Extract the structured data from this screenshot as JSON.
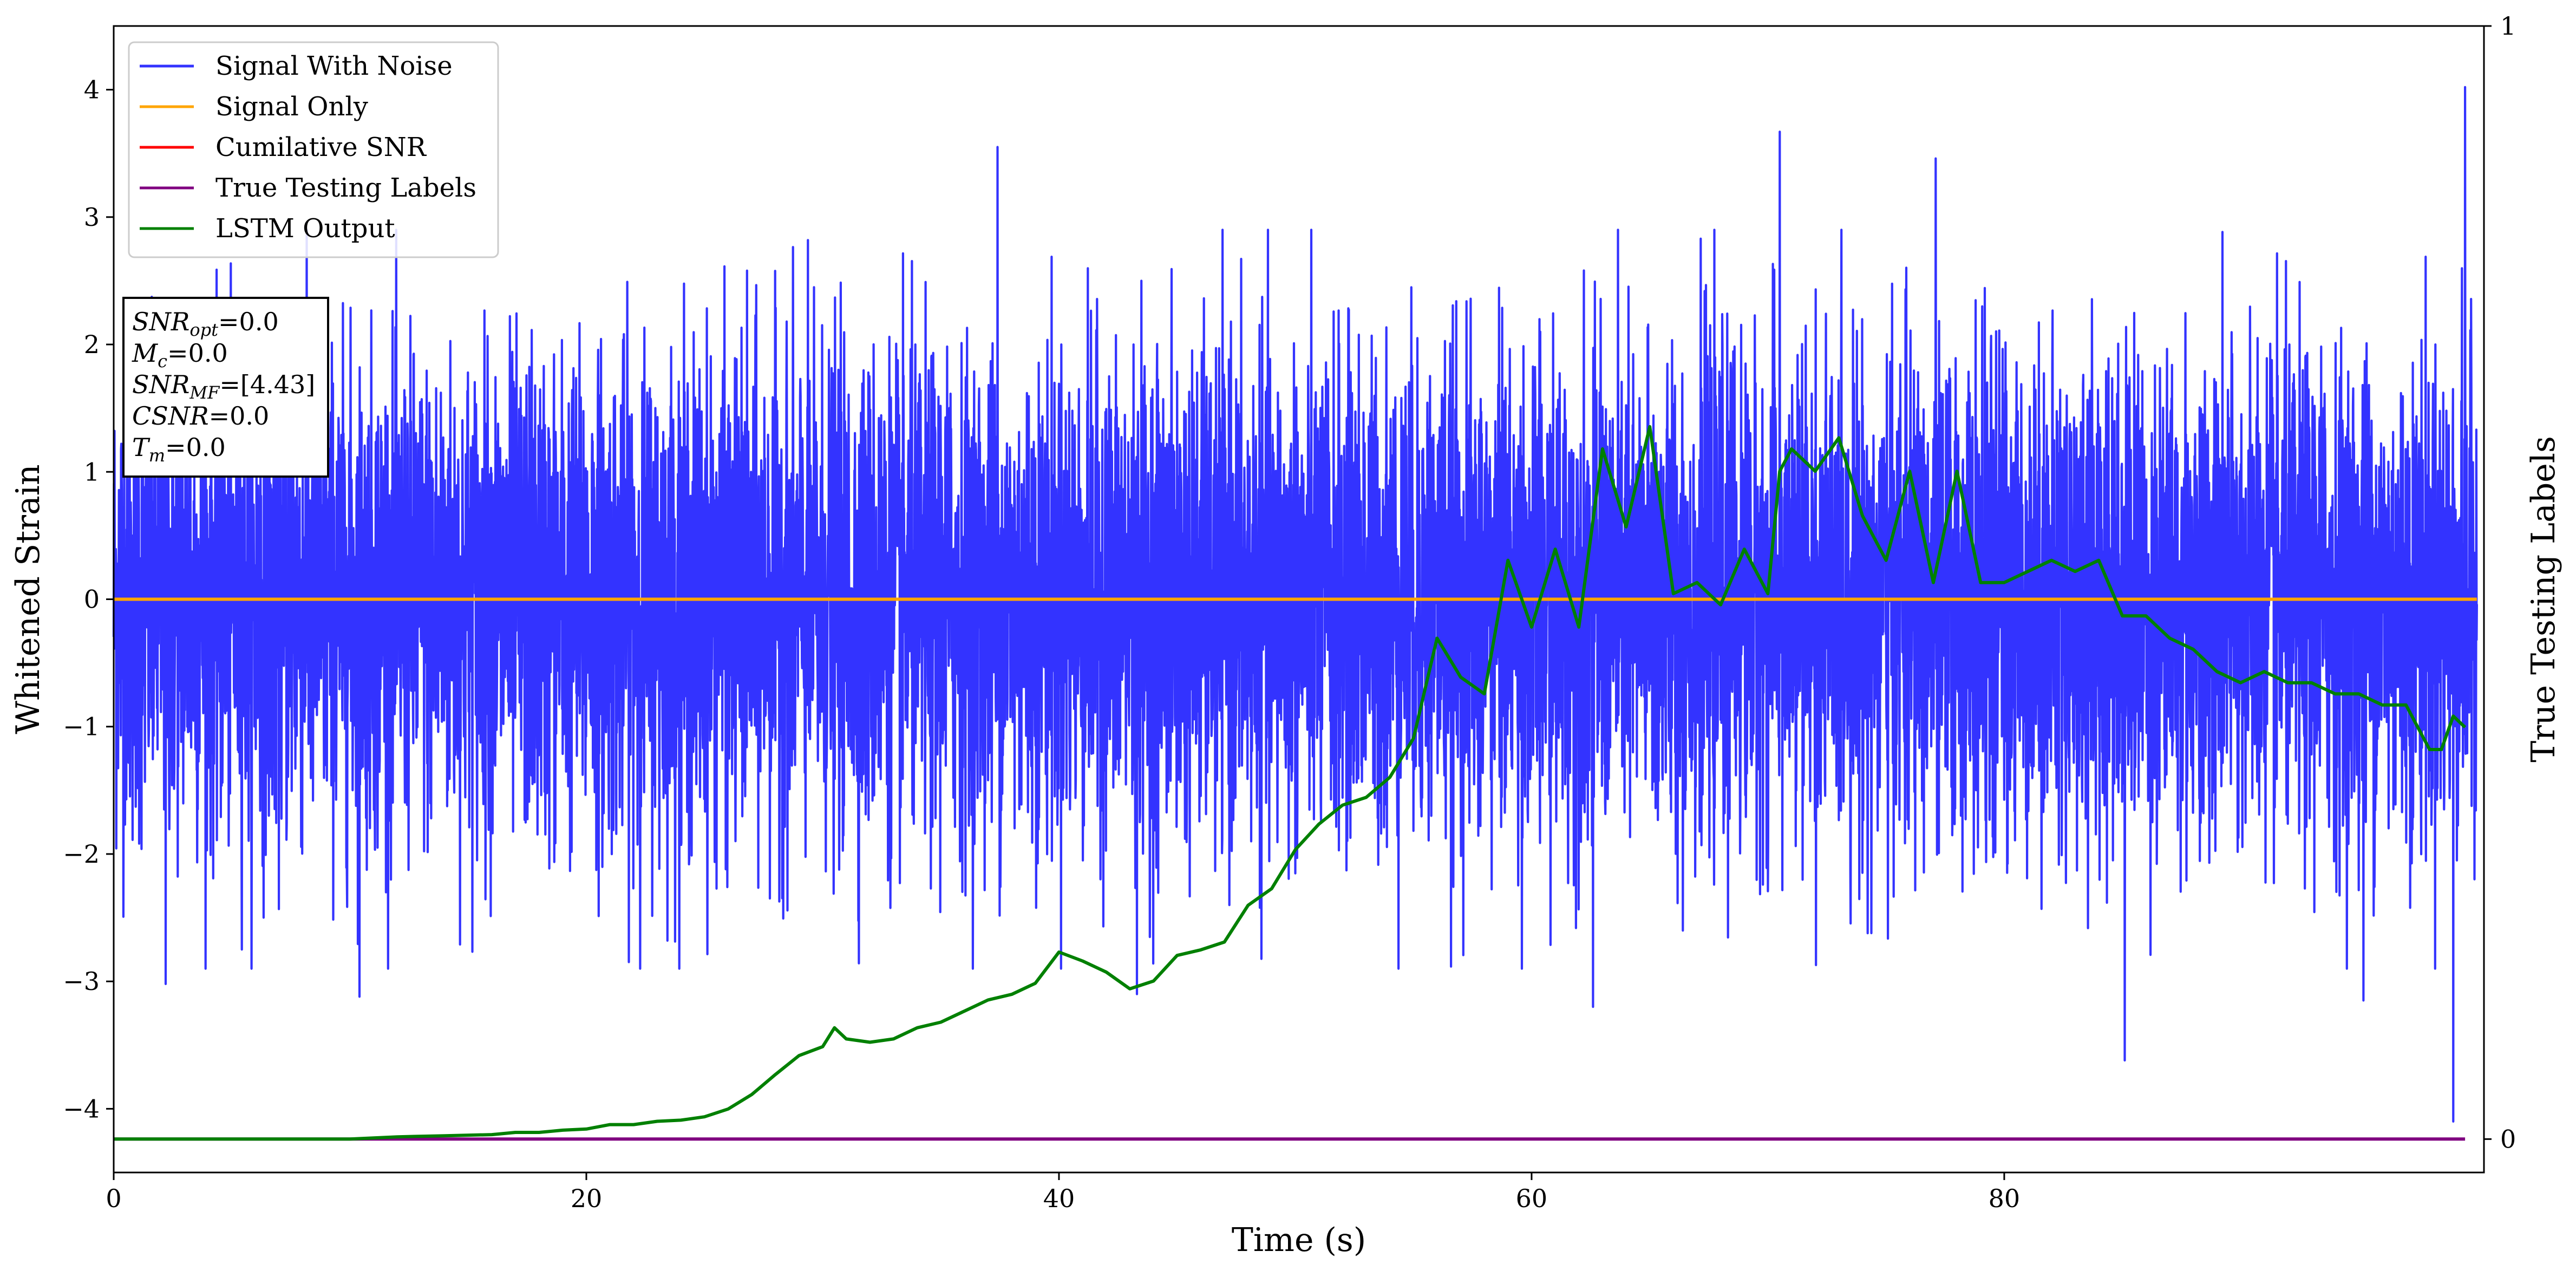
{
  "chart_data": {
    "type": "line",
    "xlabel": "Time (s)",
    "ylabel": "Whitened Strain",
    "y2label": "True Testing Labels",
    "xlim": [
      0,
      100.3
    ],
    "ylim": [
      -4.5,
      4.5
    ],
    "y2lim": [
      -0.03,
      1.0
    ],
    "x_ticks": [
      0,
      20,
      40,
      60,
      80
    ],
    "x_tick_labels": [
      "0",
      "20",
      "40",
      "60",
      "80"
    ],
    "y_ticks": [
      -4,
      -3,
      -2,
      -1,
      0,
      1,
      2,
      3,
      4
    ],
    "y_tick_labels": [
      "−4",
      "−3",
      "−2",
      "−1",
      "0",
      "1",
      "2",
      "3",
      "4"
    ],
    "y2_ticks": [
      0,
      1
    ],
    "y2_tick_labels": [
      "0",
      "1"
    ],
    "grid": false,
    "legend_position": "top-left",
    "legend": [
      {
        "label": "Signal With Noise",
        "color": "#3333ff"
      },
      {
        "label": "Signal Only",
        "color": "#ffa500"
      },
      {
        "label": "Cumilative SNR",
        "color": "#ff0000"
      },
      {
        "label": "True Testing Labels",
        "color": "#800080"
      },
      {
        "label": "LSTM Output",
        "color": "#008000"
      }
    ],
    "annotation": [
      {
        "main": "SNR",
        "sub": "opt",
        "value": "=0.0"
      },
      {
        "main": "M",
        "sub": "c",
        "value": "=0.0"
      },
      {
        "main": "SNR",
        "sub": "MF",
        "value": "=[4.43]"
      },
      {
        "main": "CSNR",
        "sub": "",
        "value": "=0.0"
      },
      {
        "main": "T",
        "sub": "m",
        "value": "=0.0"
      }
    ],
    "series": [
      {
        "name": "Signal With Noise",
        "axis": "left",
        "color": "#3333ff",
        "kind": "noise",
        "x_range": [
          0,
          100
        ],
        "std": 0.95,
        "notable_extremes": [
          {
            "x": 2.2,
            "y": -3.02
          },
          {
            "x": 10.4,
            "y": -3.12
          },
          {
            "x": 37.4,
            "y": 3.55
          },
          {
            "x": 43.3,
            "y": -3.1
          },
          {
            "x": 62.6,
            "y": -3.2
          },
          {
            "x": 70.5,
            "y": 3.67
          },
          {
            "x": 77.1,
            "y": 3.46
          },
          {
            "x": 85.1,
            "y": -3.62
          },
          {
            "x": 95.2,
            "y": -3.15
          },
          {
            "x": 99.0,
            "y": -4.1
          },
          {
            "x": 99.5,
            "y": 4.02
          }
        ]
      },
      {
        "name": "Signal Only",
        "axis": "left",
        "color": "#ffa500",
        "x": [
          0,
          100
        ],
        "y": [
          0.0,
          0.0
        ]
      },
      {
        "name": "True Testing Labels",
        "axis": "right",
        "color": "#800080",
        "x": [
          0,
          99.5
        ],
        "y": [
          0.0,
          0.0
        ]
      },
      {
        "name": "LSTM Output",
        "axis": "right",
        "color": "#008000",
        "x": [
          0,
          10,
          12,
          14,
          16,
          17,
          18,
          19,
          20,
          21,
          22,
          23,
          24,
          25,
          26,
          27,
          28,
          29,
          30,
          30.5,
          31,
          32,
          33,
          34,
          35,
          36,
          37,
          38,
          39,
          40,
          41,
          42,
          43,
          44,
          45,
          46,
          47,
          48,
          49,
          50,
          51,
          52,
          53,
          54,
          55,
          56,
          57,
          58,
          59,
          60,
          61,
          62,
          63,
          64,
          65,
          66,
          67,
          68,
          69,
          70,
          70.5,
          71,
          72,
          73,
          74,
          75,
          76,
          77,
          78,
          79,
          80,
          81,
          82,
          83,
          84,
          85,
          86,
          87,
          88,
          89,
          90,
          91,
          92,
          93,
          94,
          95,
          96,
          97,
          98,
          98.5,
          99,
          99.5
        ],
        "y": [
          0.0,
          0.0,
          0.002,
          0.003,
          0.004,
          0.006,
          0.006,
          0.008,
          0.009,
          0.013,
          0.013,
          0.016,
          0.017,
          0.02,
          0.027,
          0.04,
          0.058,
          0.075,
          0.083,
          0.1,
          0.09,
          0.087,
          0.09,
          0.1,
          0.105,
          0.115,
          0.125,
          0.13,
          0.14,
          0.168,
          0.16,
          0.15,
          0.135,
          0.142,
          0.165,
          0.17,
          0.177,
          0.21,
          0.225,
          0.26,
          0.283,
          0.3,
          0.307,
          0.325,
          0.36,
          0.45,
          0.415,
          0.4,
          0.52,
          0.46,
          0.53,
          0.46,
          0.62,
          0.55,
          0.64,
          0.49,
          0.5,
          0.48,
          0.53,
          0.49,
          0.6,
          0.62,
          0.6,
          0.63,
          0.56,
          0.52,
          0.6,
          0.5,
          0.6,
          0.5,
          0.5,
          0.51,
          0.52,
          0.51,
          0.52,
          0.47,
          0.47,
          0.45,
          0.44,
          0.42,
          0.41,
          0.42,
          0.41,
          0.41,
          0.4,
          0.4,
          0.39,
          0.39,
          0.35,
          0.35,
          0.38,
          0.37
        ]
      }
    ]
  }
}
